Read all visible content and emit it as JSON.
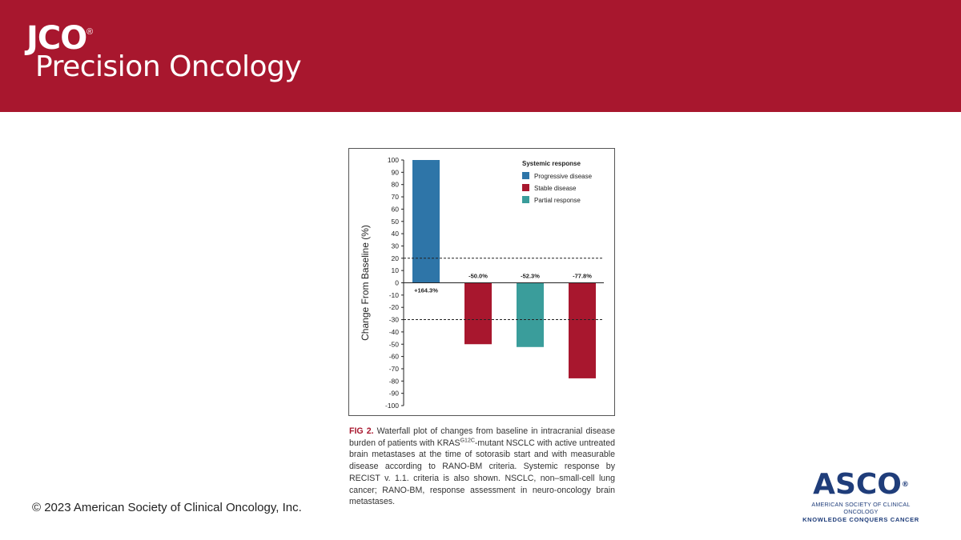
{
  "header": {
    "journal_short": "JCO",
    "journal_reg": "®",
    "journal_name": "Precision Oncology",
    "brand_color": "#a8172e"
  },
  "chart_data": {
    "type": "bar",
    "title": "",
    "xlabel": "",
    "ylabel": "Change From Baseline (%)",
    "ylim": [
      -100,
      100
    ],
    "yticks": [
      100,
      90,
      80,
      70,
      60,
      50,
      40,
      30,
      20,
      10,
      0,
      -10,
      -20,
      -30,
      -40,
      -50,
      -60,
      -70,
      -80,
      -90,
      -100
    ],
    "reference_lines": [
      20,
      -30
    ],
    "bars": [
      {
        "value": 100,
        "label": "+164.3%",
        "category": "Progressive disease"
      },
      {
        "value": -50.0,
        "label": "-50.0%",
        "category": "Stable disease"
      },
      {
        "value": -52.3,
        "label": "-52.3%",
        "category": "Partial response"
      },
      {
        "value": -77.8,
        "label": "-77.8%",
        "category": "Stable disease"
      }
    ],
    "legend": {
      "title": "Systemic response",
      "position": "top-right",
      "items": [
        {
          "name": "Progressive disease",
          "color": "#2e75a8"
        },
        {
          "name": "Stable disease",
          "color": "#a8172e"
        },
        {
          "name": "Partial response",
          "color": "#3a9d9b"
        }
      ]
    }
  },
  "caption": {
    "fig_label": "FIG 2.",
    "text_before_sup": " Waterfall plot of changes from baseline in intracranial disease burden of patients with KRAS",
    "sup": "G12C",
    "text_after_sup": "-mutant NSCLC with active untreated brain metastases at the time of sotorasib start and with measurable disease according to RANO-BM criteria. Systemic response by RECIST v. 1.1. criteria is also shown. NSCLC, non–small-cell lung cancer; RANO-BM, response assessment in neuro-oncology brain metastases."
  },
  "footer": {
    "copyright": "© 2023 American Society of Clinical Oncology, Inc.",
    "asco_word": "ASCO",
    "asco_reg": "®",
    "asco_line1": "AMERICAN SOCIETY OF CLINICAL ONCOLOGY",
    "asco_line2": "KNOWLEDGE CONQUERS CANCER",
    "asco_color": "#1f3d7a"
  }
}
